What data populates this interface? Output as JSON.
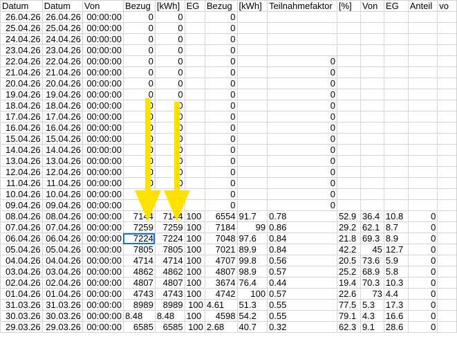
{
  "headers": [
    "Datum",
    "Datum",
    "Von",
    "Bezug",
    "[kWh]",
    "EG",
    "Bezug",
    "[kWh]",
    "Teilnahmefaktor",
    "[%]",
    "Von",
    "EG",
    "Anteil",
    "vo"
  ],
  "rows": [
    [
      "26.04.26",
      "26.04.26",
      "00:00:00",
      0,
      0,
      "",
      0,
      "",
      "",
      "",
      "",
      "",
      "",
      ""
    ],
    [
      "25.04.26",
      "25.04.26",
      "00:00:00",
      0,
      0,
      "",
      0,
      "",
      "",
      "",
      "",
      "",
      "",
      ""
    ],
    [
      "24.04.26",
      "24.04.26",
      "00:00:00",
      0,
      0,
      "",
      0,
      "",
      "",
      "",
      "",
      "",
      "",
      ""
    ],
    [
      "23.04.26",
      "23.04.26",
      "00:00:00",
      0,
      0,
      "",
      0,
      "",
      "",
      "",
      "",
      "",
      "",
      ""
    ],
    [
      "22.04.26",
      "22.04.26",
      "00:00:00",
      0,
      0,
      "",
      0,
      "",
      0,
      "",
      "",
      "",
      "",
      ""
    ],
    [
      "21.04.26",
      "21.04.26",
      "00:00:00",
      0,
      0,
      "",
      0,
      "",
      0,
      "",
      "",
      "",
      "",
      ""
    ],
    [
      "20.04.26",
      "20.04.26",
      "00:00:00",
      0,
      0,
      "",
      0,
      "",
      0,
      "",
      "",
      "",
      "",
      ""
    ],
    [
      "19.04.26",
      "19.04.26",
      "00:00:00",
      0,
      0,
      "",
      0,
      "",
      0,
      "",
      "",
      "",
      "",
      ""
    ],
    [
      "18.04.26",
      "18.04.26",
      "00:00:00",
      0,
      0,
      "",
      0,
      "",
      0,
      "",
      "",
      "",
      "",
      ""
    ],
    [
      "17.04.26",
      "17.04.26",
      "00:00:00",
      0,
      0,
      "",
      0,
      "",
      0,
      "",
      "",
      "",
      "",
      ""
    ],
    [
      "16.04.26",
      "16.04.26",
      "00:00:00",
      0,
      0,
      "",
      0,
      "",
      0,
      "",
      "",
      "",
      "",
      ""
    ],
    [
      "15.04.26",
      "15.04.26",
      "00:00:00",
      0,
      0,
      "",
      0,
      "",
      0,
      "",
      "",
      "",
      "",
      ""
    ],
    [
      "14.04.26",
      "14.04.26",
      "00:00:00",
      0,
      0,
      "",
      0,
      "",
      0,
      "",
      "",
      "",
      "",
      ""
    ],
    [
      "13.04.26",
      "13.04.26",
      "00:00:00",
      0,
      0,
      "",
      0,
      "",
      0,
      "",
      "",
      "",
      "",
      ""
    ],
    [
      "12.04.26",
      "12.04.26",
      "00:00:00",
      0,
      0,
      "",
      0,
      "",
      0,
      "",
      "",
      "",
      "",
      ""
    ],
    [
      "11.04.26",
      "11.04.26",
      "00:00:00",
      0,
      0,
      "",
      0,
      "",
      0,
      "",
      "",
      "",
      "",
      ""
    ],
    [
      "10.04.26",
      "10.04.26",
      "00:00:00",
      0,
      0,
      "",
      0,
      "",
      0,
      "",
      "",
      "",
      "",
      ""
    ],
    [
      "09.04.26",
      "09.04.26",
      "00:00:00",
      0,
      0,
      "",
      0,
      "",
      0,
      "",
      "",
      "",
      "",
      ""
    ],
    [
      "08.04.26",
      "08.04.26",
      "00:00:00",
      7144,
      7144,
      "100",
      6554,
      "91.7",
      "0.78",
      "52.9",
      "36.4",
      "10.8",
      0,
      ""
    ],
    [
      "07.04.26",
      "07.04.26",
      "00:00:00",
      7259,
      7259,
      "100",
      7184,
      99,
      "0.86",
      "29.2",
      "62.1",
      "8.7",
      0,
      ""
    ],
    [
      "06.04.26",
      "06.04.26",
      "00:00:00",
      7224,
      7224,
      "100",
      7048,
      "97.6",
      "0.84",
      "21.8",
      "69.3",
      "8.9",
      0,
      ""
    ],
    [
      "05.04.26",
      "05.04.26",
      "00:00:00",
      7805,
      7805,
      "100",
      7021,
      "89.9",
      "0.84",
      "42.2",
      45,
      "12.7",
      0,
      ""
    ],
    [
      "04.04.26",
      "04.04.26",
      "00:00:00",
      4714,
      4714,
      "100",
      4707,
      "99.8",
      "0.56",
      "20.5",
      "73.6",
      "5.9",
      0,
      ""
    ],
    [
      "03.04.26",
      "03.04.26",
      "00:00:00",
      4862,
      4862,
      "100",
      4807,
      "98.9",
      "0.57",
      "25.2",
      "68.9",
      "5.8",
      0,
      ""
    ],
    [
      "02.04.26",
      "02.04.26",
      "00:00:00",
      4807,
      4807,
      "100",
      3674,
      "76.4",
      "0.44",
      "19.4",
      "70.3",
      "10.3",
      0,
      ""
    ],
    [
      "01.04.26",
      "01.04.26",
      "00:00:00",
      4743,
      4743,
      "100",
      4742,
      100,
      "0.57",
      "22.6",
      73,
      "4.4",
      0,
      ""
    ],
    [
      "31.03.26",
      "31.03.26",
      "00:00:00",
      8989,
      8989,
      100,
      "4.61",
      "51.3",
      "0.55",
      "77.5",
      "5.3",
      "17.3",
      0,
      ""
    ],
    [
      "30.03.26",
      "30.03.26",
      "00:00:00",
      "8.48",
      "8.48",
      "100",
      4598,
      "54.2",
      "0.55",
      "79.1",
      "4.3",
      "16.6",
      0,
      ""
    ],
    [
      "29.03.26",
      "29.03.26",
      "00:00:00",
      6585,
      6585,
      100,
      "2.68",
      "40.7",
      "0.32",
      "62.3",
      "9.1",
      "28.6",
      0,
      ""
    ]
  ],
  "selected_cell": {
    "row": "06.04.26",
    "column": "Bezug"
  },
  "annotations": {
    "arrow_color": "#ffe000",
    "arrow_count": 2,
    "arrow_direction": "down"
  }
}
